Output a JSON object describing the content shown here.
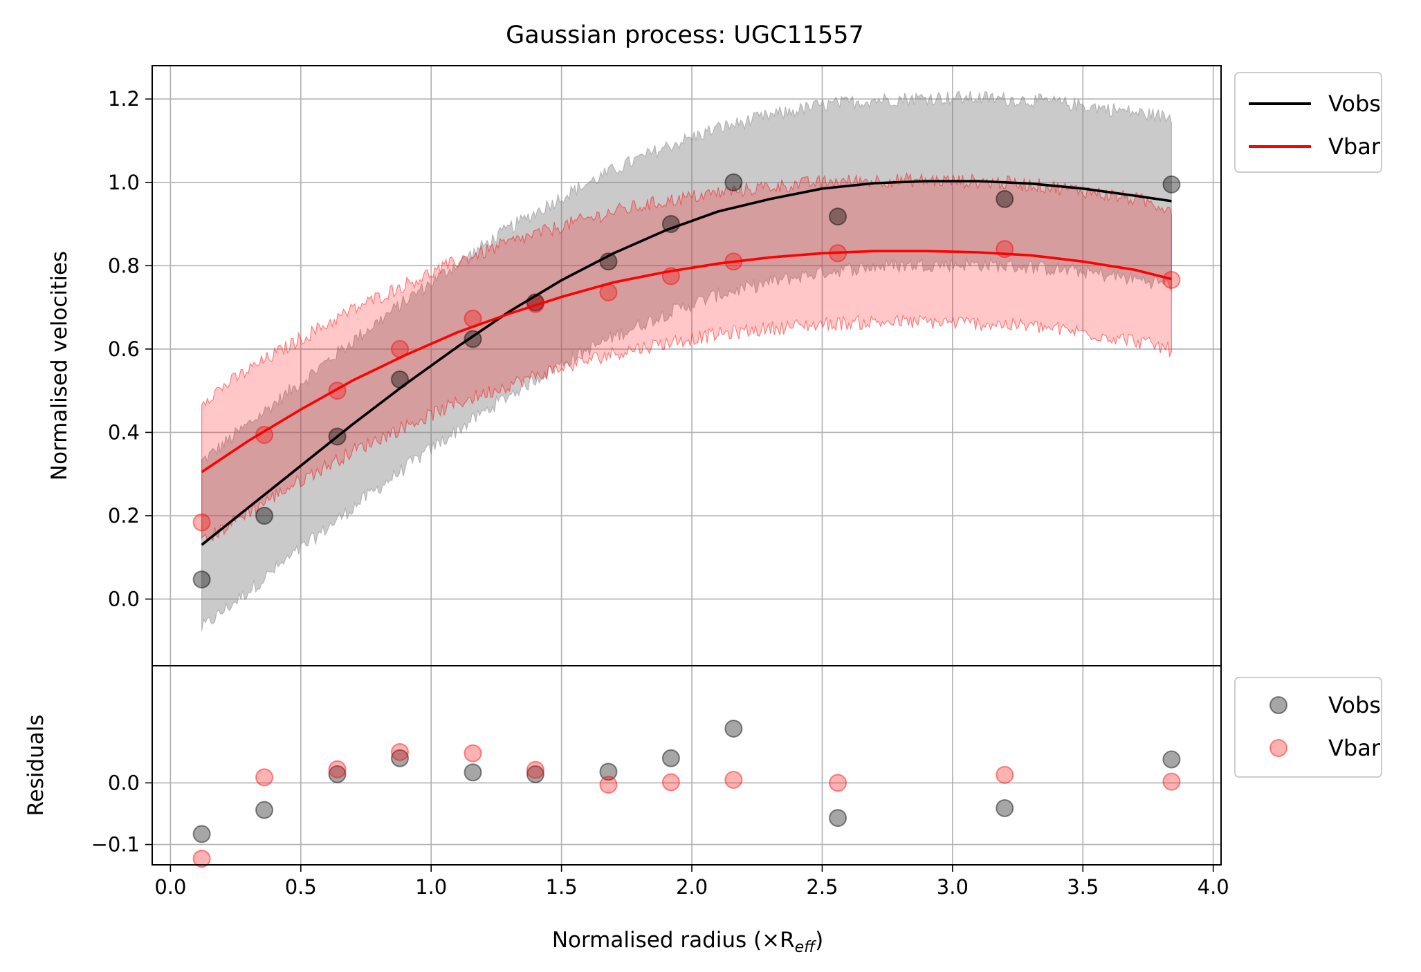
{
  "chart_data": {
    "type": "scatter",
    "title": "Gaussian process: UGC11557",
    "xlabel": "Normalised radius (×R",
    "xlabel_sub": "eff",
    "xlabel_close": ")",
    "xlim": [
      -0.07,
      4.03
    ],
    "x_ticks": [
      0.0,
      0.5,
      1.0,
      1.5,
      2.0,
      2.5,
      3.0,
      3.5,
      4.0
    ],
    "x_tick_labels": [
      "0.0",
      "0.5",
      "1.0",
      "1.5",
      "2.0",
      "2.5",
      "3.0",
      "3.5",
      "4.0"
    ],
    "grid": true,
    "colors": {
      "vobs": "#000000",
      "vbar": "#ff0000",
      "vobs_band": "#808080",
      "vbar_band": "#ff0000"
    },
    "main_panel": {
      "ylabel": "Normalised velocities",
      "ylim": [
        -0.16,
        1.28
      ],
      "y_ticks": [
        0.0,
        0.2,
        0.4,
        0.6,
        0.8,
        1.0,
        1.2
      ],
      "y_tick_labels": [
        "0.0",
        "0.2",
        "0.4",
        "0.6",
        "0.8",
        "1.0",
        "1.2"
      ],
      "legend_position": "upper right, outside axes",
      "series": [
        {
          "name": "Vobs",
          "points": {
            "x": [
              0.12,
              0.36,
              0.64,
              0.88,
              1.16,
              1.4,
              1.68,
              1.92,
              2.16,
              2.56,
              3.2,
              3.84
            ],
            "y": [
              0.047,
              0.2,
              0.39,
              0.527,
              0.624,
              0.712,
              0.81,
              0.9,
              1.0,
              0.918,
              0.96,
              0.995
            ]
          },
          "mean_curve": {
            "x": [
              0.12,
              0.3,
              0.5,
              0.7,
              0.9,
              1.1,
              1.3,
              1.5,
              1.7,
              1.9,
              2.1,
              2.3,
              2.5,
              2.7,
              2.9,
              3.1,
              3.3,
              3.5,
              3.7,
              3.84
            ],
            "y": [
              0.13,
              0.22,
              0.32,
              0.42,
              0.515,
              0.605,
              0.69,
              0.765,
              0.83,
              0.885,
              0.93,
              0.96,
              0.985,
              0.998,
              1.003,
              1.003,
              0.997,
              0.985,
              0.968,
              0.955
            ]
          },
          "band_halfwidth": 0.2
        },
        {
          "name": "Vbar",
          "points": {
            "x": [
              0.12,
              0.36,
              0.64,
              0.88,
              1.16,
              1.4,
              1.68,
              1.92,
              2.16,
              2.56,
              3.2,
              3.84
            ],
            "y": [
              0.184,
              0.394,
              0.5,
              0.6,
              0.673,
              0.708,
              0.736,
              0.775,
              0.81,
              0.83,
              0.84,
              0.766
            ]
          },
          "mean_curve": {
            "x": [
              0.12,
              0.3,
              0.5,
              0.7,
              0.9,
              1.1,
              1.3,
              1.5,
              1.7,
              1.9,
              2.1,
              2.3,
              2.5,
              2.7,
              2.9,
              3.1,
              3.3,
              3.5,
              3.7,
              3.84
            ],
            "y": [
              0.305,
              0.38,
              0.455,
              0.525,
              0.585,
              0.64,
              0.685,
              0.725,
              0.76,
              0.785,
              0.805,
              0.82,
              0.83,
              0.835,
              0.835,
              0.832,
              0.825,
              0.81,
              0.79,
              0.768
            ]
          },
          "band_halfwidth": 0.17
        }
      ]
    },
    "residual_panel": {
      "ylabel": "Residuals",
      "ylim": [
        -0.133,
        0.19
      ],
      "y_ticks": [
        -0.1,
        0.0
      ],
      "y_tick_labels": [
        "−0.1",
        "0.0"
      ],
      "legend_position": "right, outside axes",
      "series": [
        {
          "name": "Vobs",
          "x": [
            0.12,
            0.36,
            0.64,
            0.88,
            1.16,
            1.4,
            1.68,
            1.92,
            2.16,
            2.56,
            3.2,
            3.84
          ],
          "y": [
            -0.083,
            -0.044,
            0.014,
            0.04,
            0.017,
            0.014,
            0.018,
            0.04,
            0.088,
            -0.057,
            -0.041,
            0.038
          ]
        },
        {
          "name": "Vbar",
          "x": [
            0.12,
            0.36,
            0.64,
            0.88,
            1.16,
            1.4,
            1.68,
            1.92,
            2.16,
            2.56,
            3.2,
            3.84
          ],
          "y": [
            -0.123,
            0.009,
            0.022,
            0.05,
            0.048,
            0.021,
            -0.003,
            0.001,
            0.005,
            0.0,
            0.013,
            0.002
          ]
        }
      ]
    }
  }
}
